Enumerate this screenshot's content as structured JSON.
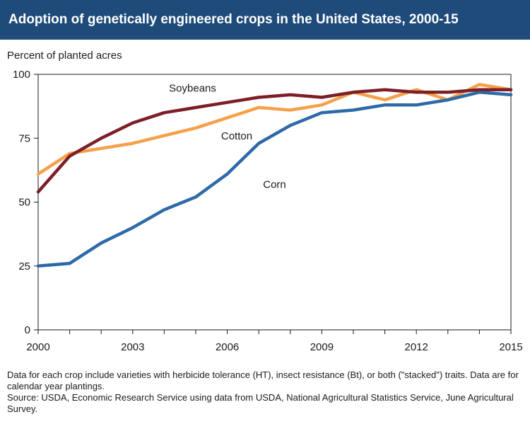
{
  "chart_data": {
    "type": "line",
    "title": "Adoption of genetically engineered crops in the United States, 2000-15",
    "ylabel": "Percent of planted acres",
    "xlabel": "",
    "x": [
      2000,
      2001,
      2002,
      2003,
      2004,
      2005,
      2006,
      2007,
      2008,
      2009,
      2010,
      2011,
      2012,
      2013,
      2014,
      2015
    ],
    "xlim": [
      2000,
      2015
    ],
    "ylim": [
      0,
      100
    ],
    "xticks": [
      "2000",
      "2003",
      "2006",
      "2009",
      "2012",
      "2015"
    ],
    "yticks": [
      "0",
      "25",
      "50",
      "75",
      "100"
    ],
    "grid": false,
    "series": [
      {
        "name": "Cotton",
        "color": "#f5a04a",
        "values": [
          61,
          69,
          71,
          73,
          76,
          79,
          83,
          87,
          86,
          88,
          93,
          90,
          94,
          90,
          96,
          94
        ]
      },
      {
        "name": "Corn",
        "color": "#2e6aa8",
        "values": [
          25,
          26,
          34,
          40,
          47,
          52,
          61,
          73,
          80,
          85,
          86,
          88,
          88,
          90,
          93,
          92
        ]
      },
      {
        "name": "Soybeans",
        "color": "#7d1f27",
        "values": [
          54,
          68,
          75,
          81,
          85,
          87,
          89,
          91,
          92,
          91,
          93,
          94,
          93,
          93,
          94,
          94
        ]
      }
    ]
  },
  "notes": {
    "line1": "Data for each crop include varieties with herbicide tolerance (HT), insect resistance (Bt), or both (\"stacked\") traits. Data are for calendar year plantings.",
    "line2": "Source: USDA, Economic Research Service using data from USDA, National Agricultural Statistics Service, June Agricultural Survey."
  }
}
